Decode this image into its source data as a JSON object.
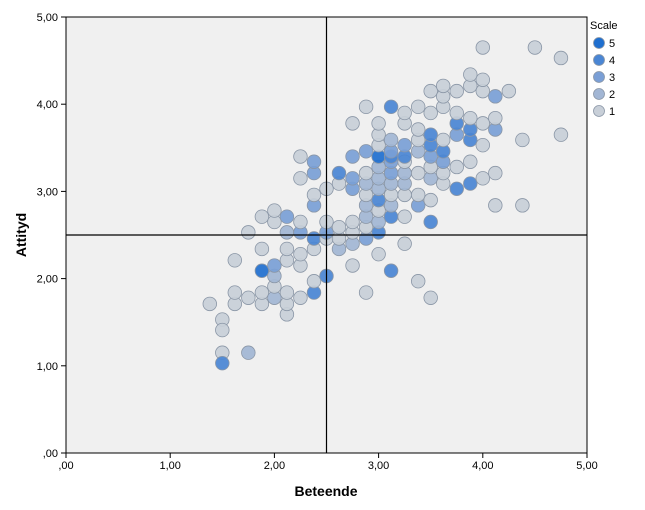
{
  "chart_data": {
    "type": "scatter",
    "xlabel": "Beteende",
    "ylabel": "Attityd",
    "xlim": [
      0,
      5
    ],
    "ylim": [
      0,
      5
    ],
    "x_ticks": [
      ",00",
      "1,00",
      "2,00",
      "3,00",
      "4,00",
      "5,00"
    ],
    "y_ticks": [
      ",00",
      "1,00",
      "2,00",
      "3,00",
      "4,00",
      "5,00"
    ],
    "reference_lines": {
      "x": 2.5,
      "y": 2.5
    },
    "grid": false,
    "legend": {
      "title": "Scale",
      "placement": "right",
      "entries": [
        "5",
        "4",
        "3",
        "2",
        "1"
      ]
    },
    "scale_colors": {
      "5": "#1f6fcf",
      "4": "#4a86d4",
      "3": "#7a9fd6",
      "2": "#a2b6d4",
      "1": "#c8cfd8"
    },
    "points": [
      {
        "x": 1.38,
        "y": 1.71,
        "s": 1
      },
      {
        "x": 1.5,
        "y": 1.53,
        "s": 1
      },
      {
        "x": 1.5,
        "y": 1.41,
        "s": 1
      },
      {
        "x": 1.5,
        "y": 1.15,
        "s": 1
      },
      {
        "x": 1.5,
        "y": 1.03,
        "s": 4
      },
      {
        "x": 1.62,
        "y": 1.71,
        "s": 1
      },
      {
        "x": 1.62,
        "y": 1.84,
        "s": 1
      },
      {
        "x": 1.62,
        "y": 2.21,
        "s": 1
      },
      {
        "x": 1.75,
        "y": 1.15,
        "s": 2
      },
      {
        "x": 1.75,
        "y": 1.78,
        "s": 1
      },
      {
        "x": 1.75,
        "y": 2.53,
        "s": 1
      },
      {
        "x": 1.88,
        "y": 1.71,
        "s": 1
      },
      {
        "x": 1.88,
        "y": 1.84,
        "s": 1
      },
      {
        "x": 1.88,
        "y": 2.09,
        "s": 5
      },
      {
        "x": 1.88,
        "y": 2.34,
        "s": 1
      },
      {
        "x": 1.88,
        "y": 2.71,
        "s": 1
      },
      {
        "x": 2.0,
        "y": 1.78,
        "s": 2
      },
      {
        "x": 2.0,
        "y": 1.91,
        "s": 1
      },
      {
        "x": 2.0,
        "y": 2.03,
        "s": 2
      },
      {
        "x": 2.0,
        "y": 2.15,
        "s": 3
      },
      {
        "x": 2.0,
        "y": 2.65,
        "s": 1
      },
      {
        "x": 2.0,
        "y": 2.78,
        "s": 1
      },
      {
        "x": 2.12,
        "y": 1.59,
        "s": 1
      },
      {
        "x": 2.12,
        "y": 1.71,
        "s": 1
      },
      {
        "x": 2.12,
        "y": 1.84,
        "s": 1
      },
      {
        "x": 2.12,
        "y": 2.21,
        "s": 1
      },
      {
        "x": 2.12,
        "y": 2.34,
        "s": 1
      },
      {
        "x": 2.12,
        "y": 2.53,
        "s": 2
      },
      {
        "x": 2.12,
        "y": 2.71,
        "s": 3
      },
      {
        "x": 2.25,
        "y": 1.78,
        "s": 1
      },
      {
        "x": 2.25,
        "y": 2.15,
        "s": 1
      },
      {
        "x": 2.25,
        "y": 2.28,
        "s": 1
      },
      {
        "x": 2.25,
        "y": 2.53,
        "s": 3
      },
      {
        "x": 2.25,
        "y": 2.65,
        "s": 1
      },
      {
        "x": 2.25,
        "y": 3.15,
        "s": 1
      },
      {
        "x": 2.25,
        "y": 3.4,
        "s": 1
      },
      {
        "x": 2.38,
        "y": 1.84,
        "s": 4
      },
      {
        "x": 2.38,
        "y": 1.97,
        "s": 1
      },
      {
        "x": 2.38,
        "y": 2.34,
        "s": 1
      },
      {
        "x": 2.38,
        "y": 2.46,
        "s": 4
      },
      {
        "x": 2.38,
        "y": 2.84,
        "s": 3
      },
      {
        "x": 2.38,
        "y": 2.96,
        "s": 1
      },
      {
        "x": 2.38,
        "y": 3.21,
        "s": 3
      },
      {
        "x": 2.38,
        "y": 3.34,
        "s": 3
      },
      {
        "x": 2.5,
        "y": 2.03,
        "s": 4
      },
      {
        "x": 2.5,
        "y": 2.46,
        "s": 1
      },
      {
        "x": 2.5,
        "y": 2.53,
        "s": 3
      },
      {
        "x": 2.5,
        "y": 2.65,
        "s": 1
      },
      {
        "x": 2.5,
        "y": 3.03,
        "s": 1
      },
      {
        "x": 2.62,
        "y": 2.34,
        "s": 2
      },
      {
        "x": 2.62,
        "y": 2.46,
        "s": 1
      },
      {
        "x": 2.62,
        "y": 2.59,
        "s": 1
      },
      {
        "x": 2.62,
        "y": 3.09,
        "s": 1
      },
      {
        "x": 2.62,
        "y": 3.21,
        "s": 4
      },
      {
        "x": 2.75,
        "y": 2.15,
        "s": 1
      },
      {
        "x": 2.75,
        "y": 2.4,
        "s": 2
      },
      {
        "x": 2.75,
        "y": 2.53,
        "s": 1
      },
      {
        "x": 2.75,
        "y": 2.65,
        "s": 1
      },
      {
        "x": 2.75,
        "y": 3.03,
        "s": 3
      },
      {
        "x": 2.75,
        "y": 3.15,
        "s": 3
      },
      {
        "x": 2.75,
        "y": 3.4,
        "s": 3
      },
      {
        "x": 2.75,
        "y": 3.78,
        "s": 1
      },
      {
        "x": 2.88,
        "y": 1.84,
        "s": 1
      },
      {
        "x": 2.88,
        "y": 2.46,
        "s": 3
      },
      {
        "x": 2.88,
        "y": 2.59,
        "s": 1
      },
      {
        "x": 2.88,
        "y": 2.71,
        "s": 2
      },
      {
        "x": 2.88,
        "y": 2.84,
        "s": 2
      },
      {
        "x": 2.88,
        "y": 2.96,
        "s": 1
      },
      {
        "x": 2.88,
        "y": 3.09,
        "s": 2
      },
      {
        "x": 2.88,
        "y": 3.21,
        "s": 1
      },
      {
        "x": 2.88,
        "y": 3.46,
        "s": 3
      },
      {
        "x": 2.88,
        "y": 3.97,
        "s": 1
      },
      {
        "x": 3.0,
        "y": 2.28,
        "s": 1
      },
      {
        "x": 3.0,
        "y": 2.53,
        "s": 4
      },
      {
        "x": 3.0,
        "y": 2.65,
        "s": 2
      },
      {
        "x": 3.0,
        "y": 2.78,
        "s": 1
      },
      {
        "x": 3.0,
        "y": 2.9,
        "s": 4
      },
      {
        "x": 3.0,
        "y": 3.03,
        "s": 2
      },
      {
        "x": 3.0,
        "y": 3.15,
        "s": 2
      },
      {
        "x": 3.0,
        "y": 3.28,
        "s": 2
      },
      {
        "x": 3.0,
        "y": 3.4,
        "s": 5
      },
      {
        "x": 3.0,
        "y": 3.53,
        "s": 1
      },
      {
        "x": 3.0,
        "y": 3.65,
        "s": 1
      },
      {
        "x": 3.0,
        "y": 3.78,
        "s": 1
      },
      {
        "x": 3.12,
        "y": 2.09,
        "s": 4
      },
      {
        "x": 3.12,
        "y": 2.71,
        "s": 4
      },
      {
        "x": 3.12,
        "y": 2.84,
        "s": 2
      },
      {
        "x": 3.12,
        "y": 2.96,
        "s": 1
      },
      {
        "x": 3.12,
        "y": 3.09,
        "s": 2
      },
      {
        "x": 3.12,
        "y": 3.21,
        "s": 3
      },
      {
        "x": 3.12,
        "y": 3.34,
        "s": 3
      },
      {
        "x": 3.12,
        "y": 3.4,
        "s": 4
      },
      {
        "x": 3.12,
        "y": 3.46,
        "s": 3
      },
      {
        "x": 3.12,
        "y": 3.59,
        "s": 2
      },
      {
        "x": 3.12,
        "y": 3.97,
        "s": 4
      },
      {
        "x": 3.25,
        "y": 2.4,
        "s": 1
      },
      {
        "x": 3.25,
        "y": 2.71,
        "s": 1
      },
      {
        "x": 3.25,
        "y": 2.96,
        "s": 1
      },
      {
        "x": 3.25,
        "y": 3.09,
        "s": 2
      },
      {
        "x": 3.25,
        "y": 3.21,
        "s": 2
      },
      {
        "x": 3.25,
        "y": 3.34,
        "s": 1
      },
      {
        "x": 3.25,
        "y": 3.4,
        "s": 4
      },
      {
        "x": 3.25,
        "y": 3.53,
        "s": 3
      },
      {
        "x": 3.25,
        "y": 3.78,
        "s": 1
      },
      {
        "x": 3.25,
        "y": 3.9,
        "s": 1
      },
      {
        "x": 3.38,
        "y": 1.97,
        "s": 1
      },
      {
        "x": 3.38,
        "y": 2.84,
        "s": 3
      },
      {
        "x": 3.38,
        "y": 2.96,
        "s": 1
      },
      {
        "x": 3.38,
        "y": 3.21,
        "s": 1
      },
      {
        "x": 3.38,
        "y": 3.46,
        "s": 2
      },
      {
        "x": 3.38,
        "y": 3.59,
        "s": 1
      },
      {
        "x": 3.38,
        "y": 3.71,
        "s": 1
      },
      {
        "x": 3.38,
        "y": 3.97,
        "s": 1
      },
      {
        "x": 3.5,
        "y": 1.78,
        "s": 1
      },
      {
        "x": 3.5,
        "y": 2.65,
        "s": 4
      },
      {
        "x": 3.5,
        "y": 2.9,
        "s": 1
      },
      {
        "x": 3.5,
        "y": 3.15,
        "s": 2
      },
      {
        "x": 3.5,
        "y": 3.28,
        "s": 1
      },
      {
        "x": 3.5,
        "y": 3.4,
        "s": 3
      },
      {
        "x": 3.5,
        "y": 3.53,
        "s": 4
      },
      {
        "x": 3.5,
        "y": 3.65,
        "s": 4
      },
      {
        "x": 3.5,
        "y": 3.9,
        "s": 1
      },
      {
        "x": 3.5,
        "y": 4.15,
        "s": 1
      },
      {
        "x": 3.62,
        "y": 3.09,
        "s": 1
      },
      {
        "x": 3.62,
        "y": 3.21,
        "s": 1
      },
      {
        "x": 3.62,
        "y": 3.34,
        "s": 3
      },
      {
        "x": 3.62,
        "y": 3.46,
        "s": 4
      },
      {
        "x": 3.62,
        "y": 3.59,
        "s": 1
      },
      {
        "x": 3.62,
        "y": 3.97,
        "s": 1
      },
      {
        "x": 3.62,
        "y": 4.09,
        "s": 1
      },
      {
        "x": 3.62,
        "y": 4.21,
        "s": 1
      },
      {
        "x": 3.75,
        "y": 3.03,
        "s": 4
      },
      {
        "x": 3.75,
        "y": 3.28,
        "s": 1
      },
      {
        "x": 3.75,
        "y": 3.65,
        "s": 3
      },
      {
        "x": 3.75,
        "y": 3.78,
        "s": 4
      },
      {
        "x": 3.75,
        "y": 3.9,
        "s": 1
      },
      {
        "x": 3.75,
        "y": 4.15,
        "s": 1
      },
      {
        "x": 3.88,
        "y": 3.09,
        "s": 4
      },
      {
        "x": 3.88,
        "y": 3.34,
        "s": 1
      },
      {
        "x": 3.88,
        "y": 3.59,
        "s": 4
      },
      {
        "x": 3.88,
        "y": 3.71,
        "s": 4
      },
      {
        "x": 3.88,
        "y": 3.84,
        "s": 1
      },
      {
        "x": 3.88,
        "y": 4.21,
        "s": 1
      },
      {
        "x": 3.88,
        "y": 4.34,
        "s": 1
      },
      {
        "x": 4.0,
        "y": 3.15,
        "s": 1
      },
      {
        "x": 4.0,
        "y": 3.53,
        "s": 1
      },
      {
        "x": 4.0,
        "y": 3.78,
        "s": 1
      },
      {
        "x": 4.0,
        "y": 4.15,
        "s": 1
      },
      {
        "x": 4.0,
        "y": 4.28,
        "s": 1
      },
      {
        "x": 4.0,
        "y": 4.65,
        "s": 1
      },
      {
        "x": 4.12,
        "y": 2.84,
        "s": 1
      },
      {
        "x": 4.12,
        "y": 3.21,
        "s": 1
      },
      {
        "x": 4.12,
        "y": 3.71,
        "s": 3
      },
      {
        "x": 4.12,
        "y": 3.84,
        "s": 1
      },
      {
        "x": 4.12,
        "y": 4.09,
        "s": 3
      },
      {
        "x": 4.25,
        "y": 4.15,
        "s": 1
      },
      {
        "x": 4.38,
        "y": 2.84,
        "s": 1
      },
      {
        "x": 4.38,
        "y": 3.59,
        "s": 1
      },
      {
        "x": 4.5,
        "y": 4.65,
        "s": 1
      },
      {
        "x": 4.75,
        "y": 3.65,
        "s": 1
      },
      {
        "x": 4.75,
        "y": 4.53,
        "s": 1
      }
    ]
  }
}
